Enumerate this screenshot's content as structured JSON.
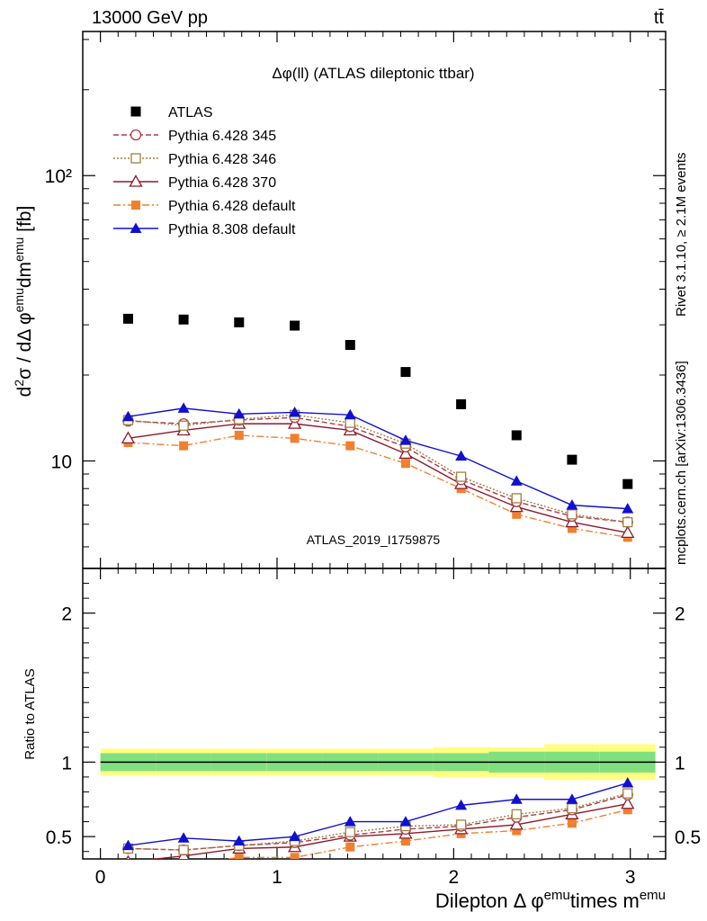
{
  "header": {
    "left": "13000 GeV pp",
    "right": "tt̄"
  },
  "side_labels": {
    "rivet": "Rivet 3.1.10, ≥ 2.1M events",
    "mcplots": "mcplots.cern.ch [arXiv:1306.3436]"
  },
  "chart_data": {
    "type": "line",
    "title": "Δφ(ll) (ATLAS dileptonic ttbar)",
    "analysis_id": "ATLAS_2019_I1759875",
    "xlabel": "Dilepton Δ φ^emu times m^emu",
    "ylabel": "d²σ / dΔ φ^emu dm^emu [fb]",
    "ratio_ylabel": "Ratio to ATLAS",
    "log_y": true,
    "xlim": [
      -0.1,
      3.2
    ],
    "ylim": [
      4.2,
      320
    ],
    "ratio_ylim": [
      0.35,
      2.3
    ],
    "x_ticks": [
      "0",
      "1",
      "2",
      "3"
    ],
    "y_ticks": [
      "10",
      "10²"
    ],
    "ratio_ticks": [
      "0.5",
      "1",
      "2"
    ],
    "x": [
      0.157,
      0.471,
      0.785,
      1.1,
      1.414,
      1.728,
      2.042,
      2.356,
      2.67,
      2.985
    ],
    "data_series": {
      "name": "ATLAS",
      "values": [
        31.5,
        31.3,
        30.6,
        29.8,
        25.5,
        20.5,
        15.8,
        12.3,
        10.1,
        8.3
      ],
      "band_inner": [
        0.06,
        0.06,
        0.06,
        0.06,
        0.06,
        0.06,
        0.06,
        0.07,
        0.07,
        0.07
      ],
      "band_outer": [
        0.09,
        0.09,
        0.09,
        0.09,
        0.09,
        0.09,
        0.1,
        0.1,
        0.12,
        0.12
      ]
    },
    "series": [
      {
        "name": "Pythia 6.428 345",
        "values": [
          13.8,
          13.5,
          13.9,
          14.2,
          13.2,
          11.2,
          8.6,
          7.2,
          6.4,
          6.1
        ],
        "ratio": [
          0.42,
          0.41,
          0.44,
          0.46,
          0.51,
          0.55,
          0.57,
          0.63,
          0.68,
          0.78
        ]
      },
      {
        "name": "Pythia 6.428 346",
        "values": [
          13.9,
          13.3,
          14.0,
          14.5,
          13.6,
          11.5,
          8.8,
          7.4,
          6.5,
          6.1
        ],
        "ratio": [
          0.42,
          0.41,
          0.44,
          0.47,
          0.53,
          0.57,
          0.58,
          0.65,
          0.69,
          0.79
        ]
      },
      {
        "name": "Pythia 6.428 370",
        "values": [
          12.0,
          12.8,
          13.5,
          13.5,
          12.8,
          10.6,
          8.3,
          6.9,
          6.1,
          5.6
        ],
        "ratio": [
          0.33,
          0.37,
          0.42,
          0.43,
          0.5,
          0.52,
          0.55,
          0.58,
          0.65,
          0.72
        ]
      },
      {
        "name": "Pythia 6.428 default",
        "values": [
          11.6,
          11.3,
          12.3,
          12.0,
          11.3,
          9.8,
          8.0,
          6.5,
          5.8,
          5.4
        ],
        "ratio": [
          0.3,
          0.31,
          0.36,
          0.36,
          0.43,
          0.47,
          0.52,
          0.54,
          0.59,
          0.68
        ]
      },
      {
        "name": "Pythia 8.308 default",
        "values": [
          14.3,
          15.3,
          14.6,
          14.8,
          14.5,
          11.8,
          10.4,
          8.5,
          7.0,
          6.8
        ],
        "ratio": [
          0.44,
          0.49,
          0.47,
          0.5,
          0.6,
          0.6,
          0.71,
          0.75,
          0.75,
          0.86
        ],
        "ratio_err": [
          0.015,
          0.015,
          0.015,
          0.015,
          0.015,
          0.015,
          0.02,
          0.025,
          0.025,
          0.025
        ]
      }
    ]
  },
  "styles": {
    "Pythia 6.428 345": {
      "color": "#b03a48",
      "dash": "6,3",
      "marker": "circle-open"
    },
    "Pythia 6.428 346": {
      "color": "#a08040",
      "dash": "2,2",
      "marker": "square-open"
    },
    "Pythia 6.428 370": {
      "color": "#8b1a2a",
      "dash": "",
      "marker": "triangle-open"
    },
    "Pythia 6.428 default": {
      "color": "#f08030",
      "dash": "8,3,2,3",
      "marker": "square-filled"
    },
    "Pythia 8.308 default": {
      "color": "#1010d0",
      "dash": "",
      "marker": "triangle-filled"
    },
    "ATLAS": {
      "color": "#000000",
      "marker": "square-filled"
    },
    "band_inner_color": "#80e080",
    "band_outer_color": "#ffff80"
  }
}
